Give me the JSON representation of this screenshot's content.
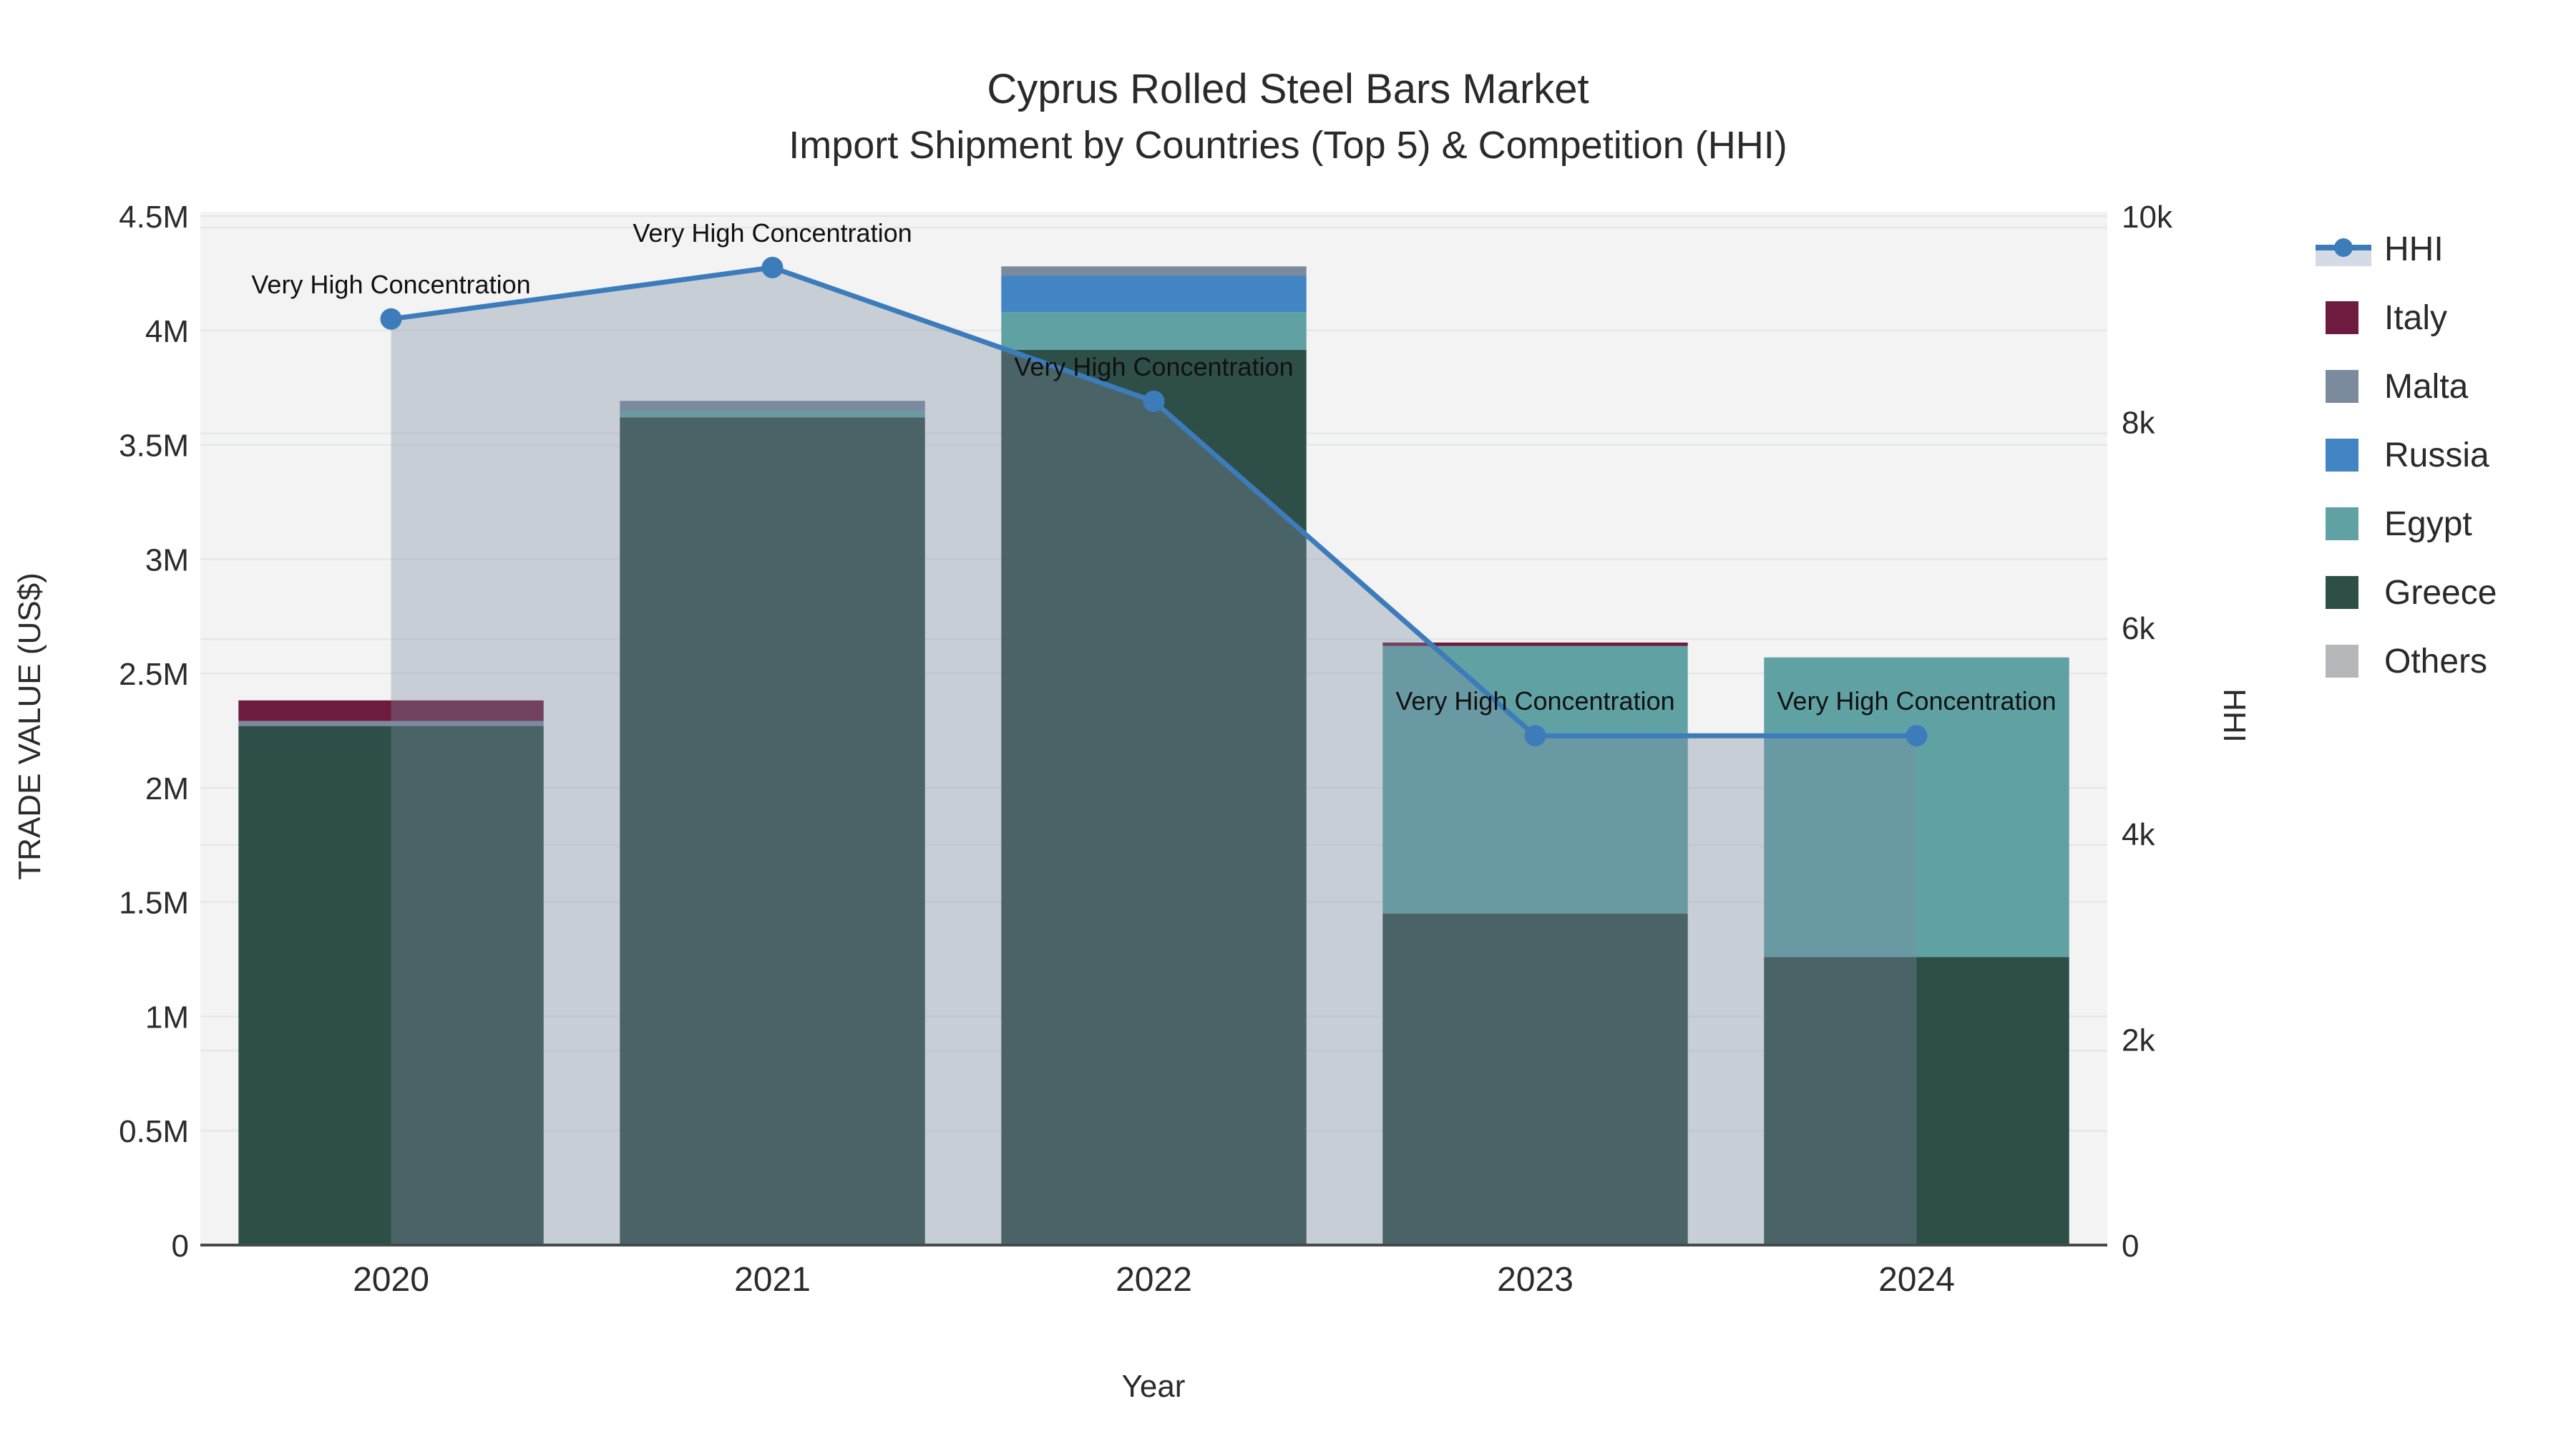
{
  "chart_data": {
    "type": "bar+line",
    "title_line1": "Cyprus Rolled Steel Bars Market",
    "title_line2": "Import Shipment by Countries (Top 5) & Competition (HHI)",
    "xlabel": "Year",
    "x": [
      "2020",
      "2021",
      "2022",
      "2023",
      "2024"
    ],
    "y1": {
      "label": "TRADE VALUE (US$)",
      "range": [
        0,
        4500000
      ],
      "tick_values": [
        0,
        500000,
        1000000,
        1500000,
        2000000,
        2500000,
        3000000,
        3500000,
        4000000,
        4500000
      ],
      "tick_labels": [
        "0",
        "0.5M",
        "1M",
        "1.5M",
        "2M",
        "2.5M",
        "3M",
        "3.5M",
        "4M",
        "4.5M"
      ]
    },
    "y2": {
      "label": "HHI",
      "range": [
        0,
        10000
      ],
      "tick_values": [
        0,
        2000,
        4000,
        6000,
        8000,
        10000
      ],
      "tick_labels": [
        "0",
        "2k",
        "4k",
        "6k",
        "8k",
        "10k"
      ]
    },
    "stack_order_bottom_to_top": [
      "Others",
      "Greece",
      "Egypt",
      "Russia",
      "Malta",
      "Italy"
    ],
    "series": [
      {
        "name": "Italy",
        "color": "#6d1c3f",
        "values": [
          90000,
          0,
          0,
          15000,
          0
        ]
      },
      {
        "name": "Malta",
        "color": "#7b8a9d",
        "values": [
          22000,
          44000,
          40000,
          0,
          0
        ]
      },
      {
        "name": "Russia",
        "color": "#4384c4",
        "values": [
          0,
          0,
          160000,
          0,
          0
        ]
      },
      {
        "name": "Egypt",
        "color": "#60a2a4",
        "values": [
          0,
          28000,
          165000,
          1170000,
          1310000
        ]
      },
      {
        "name": "Greece",
        "color": "#2e4f47",
        "values": [
          2270000,
          3620000,
          3915000,
          1450000,
          1260000
        ]
      },
      {
        "name": "Others",
        "color": "#b4b8bb",
        "values": [
          0,
          0,
          0,
          0,
          0
        ]
      }
    ],
    "hhi": {
      "name": "HHI",
      "color": "#3d7cbb",
      "area_fill": "rgba(122,138,160,0.35)",
      "values": [
        9000,
        9500,
        8200,
        4950,
        4950
      ]
    },
    "annotations": [
      {
        "x": "2020",
        "text": "Very High Concentration"
      },
      {
        "x": "2021",
        "text": "Very High Concentration"
      },
      {
        "x": "2022",
        "text": "Very High Concentration"
      },
      {
        "x": "2023",
        "text": "Very High Concentration"
      },
      {
        "x": "2024",
        "text": "Very High Concentration"
      }
    ],
    "legend_order": [
      "HHI",
      "Italy",
      "Malta",
      "Russia",
      "Egypt",
      "Greece",
      "Others"
    ],
    "legend_position": "right"
  },
  "colors": {
    "plot_bg": "#f2f3f2",
    "grid": "#e3e6e5",
    "axis_line": "#454a4c",
    "tick_text": "#2b2b2b",
    "annotation_text": "#111111",
    "legend_hhi_band": "#d5dbe4"
  }
}
